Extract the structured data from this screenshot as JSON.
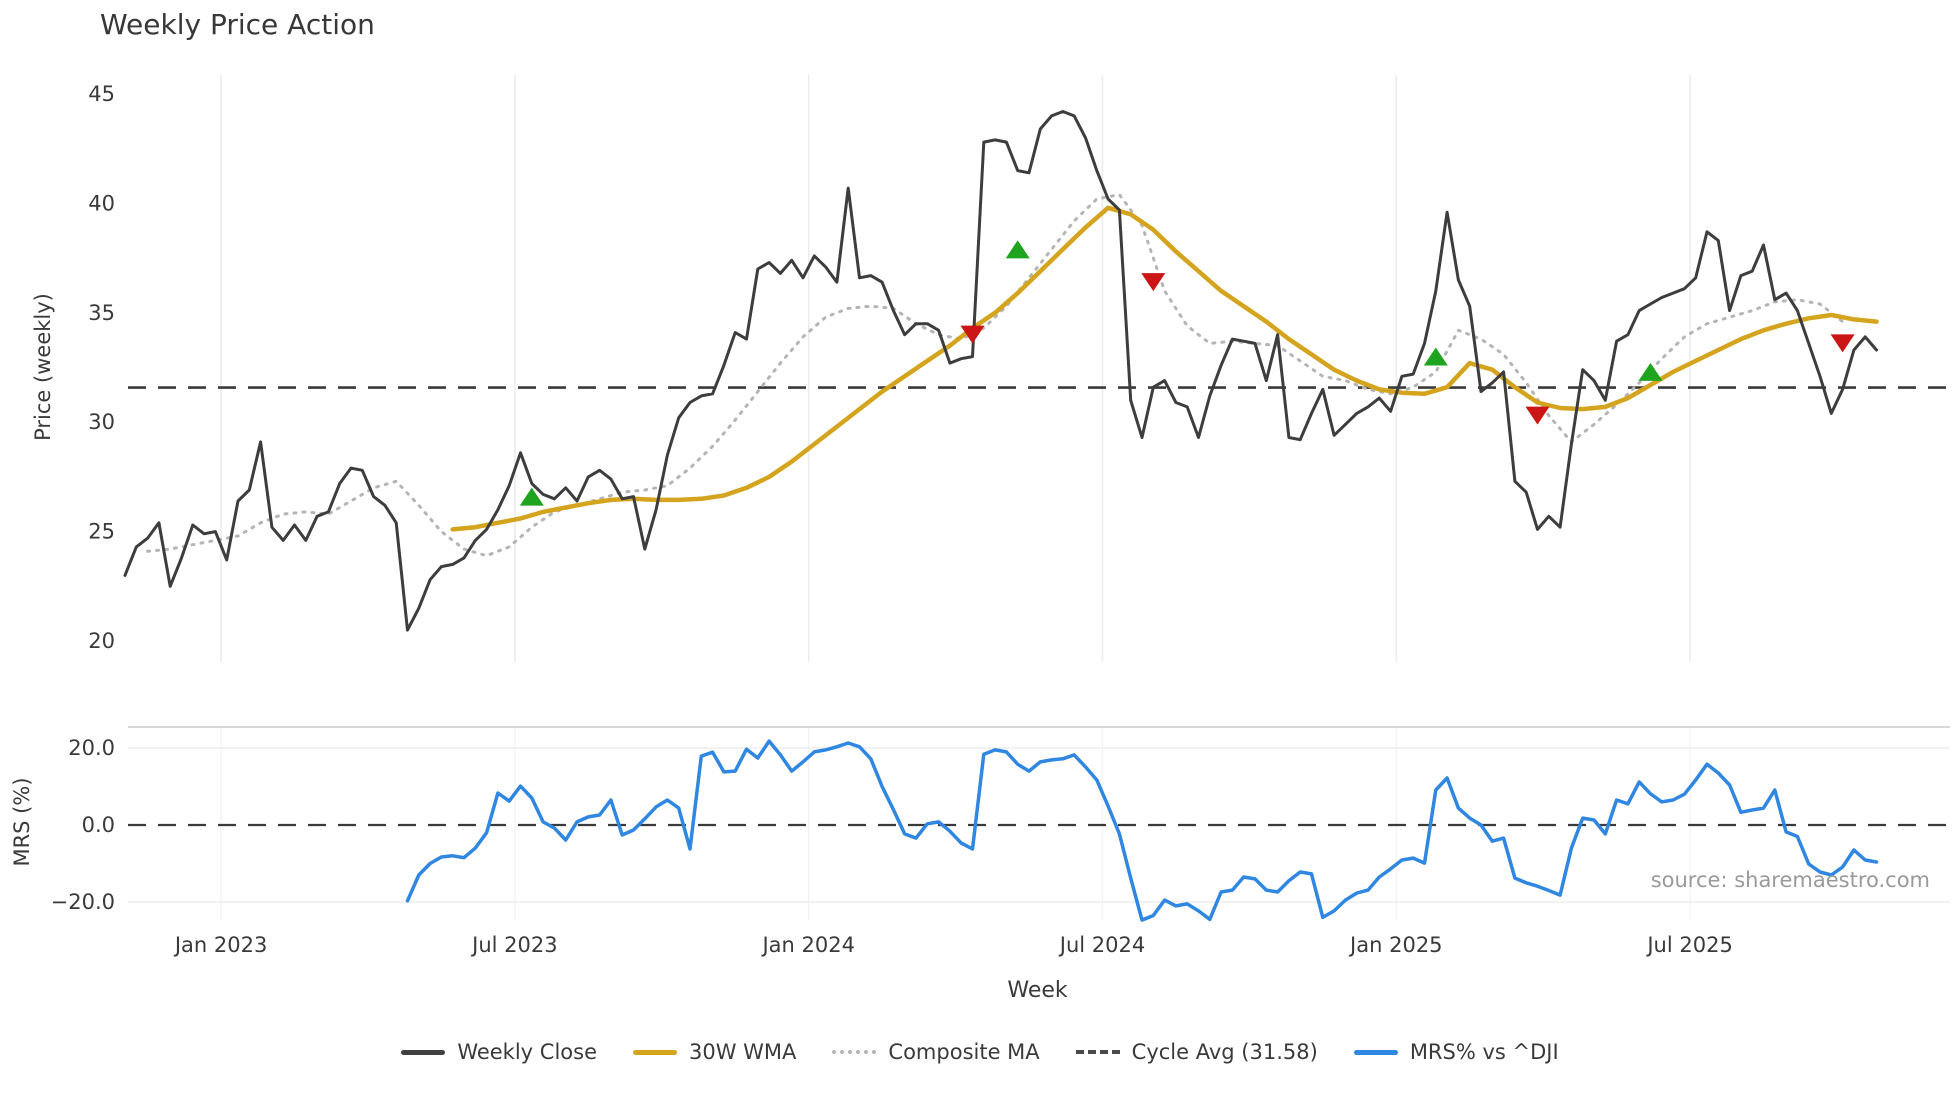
{
  "page": {
    "source_note": "source: sharemaestro.com"
  },
  "chart_data": {
    "type": "line",
    "title": "Weekly Price Action",
    "xlabel": "Week",
    "grid": "light vertical gridlines on price panel; light horizontal gridlines on MRS panel",
    "legend_position": "bottom center",
    "panels": [
      {
        "name": "price",
        "ylabel": "Price (weekly)",
        "yticks": [
          20,
          25,
          30,
          35,
          40,
          45
        ],
        "ylim": [
          19.0,
          45.9
        ]
      },
      {
        "name": "mrs",
        "ylabel": "MRS (%)",
        "yticks": [
          20.0,
          0.0,
          -20.0
        ],
        "ylim": [
          -26,
          26
        ]
      }
    ],
    "price_ticks": [
      {
        "value": 45,
        "label": "45"
      },
      {
        "value": 40,
        "label": "40"
      },
      {
        "value": 35,
        "label": "35"
      },
      {
        "value": 30,
        "label": "30"
      },
      {
        "value": 25,
        "label": "25"
      },
      {
        "value": 20,
        "label": "20"
      }
    ],
    "mrs_ticks": [
      {
        "value": 20,
        "label": "20.0"
      },
      {
        "value": 0,
        "label": "0.0"
      },
      {
        "value": -20,
        "label": "−20.0"
      }
    ],
    "x_ticks": [
      {
        "week": 8.5,
        "label": "Jan 2023"
      },
      {
        "week": 34.5,
        "label": "Jul 2023"
      },
      {
        "week": 60.5,
        "label": "Jan 2024"
      },
      {
        "week": 86.5,
        "label": "Jul 2024"
      },
      {
        "week": 112.5,
        "label": "Jan 2025"
      },
      {
        "week": 138.5,
        "label": "Jul 2025"
      }
    ],
    "cycle_avg": 31.58,
    "series": [
      {
        "name": "Weekly Close",
        "panel": "price",
        "color": "#3d3d3d",
        "style": "solid",
        "width": 3,
        "start_week": 0,
        "step": 1,
        "values": [
          23.0,
          24.3,
          24.7,
          25.4,
          22.5,
          23.8,
          25.3,
          24.9,
          25.0,
          23.7,
          26.4,
          26.9,
          29.1,
          25.2,
          24.6,
          25.3,
          24.6,
          25.7,
          25.9,
          27.2,
          27.9,
          27.8,
          26.6,
          26.2,
          25.4,
          20.5,
          21.5,
          22.8,
          23.4,
          23.5,
          23.8,
          24.6,
          25.1,
          26.0,
          27.1,
          28.6,
          27.2,
          26.7,
          26.5,
          27.0,
          26.4,
          27.5,
          27.8,
          27.4,
          26.5,
          26.6,
          24.2,
          26.0,
          28.5,
          30.2,
          30.9,
          31.2,
          31.3,
          32.6,
          34.1,
          33.8,
          37.0,
          37.3,
          36.8,
          37.4,
          36.6,
          37.6,
          37.1,
          36.4,
          40.7,
          36.6,
          36.7,
          36.4,
          35.1,
          34.0,
          34.5,
          34.5,
          34.2,
          32.7,
          32.9,
          33.0,
          42.8,
          42.9,
          42.8,
          41.5,
          41.4,
          43.4,
          44.0,
          44.2,
          44.0,
          43.0,
          41.5,
          40.2,
          39.7,
          31.0,
          29.3,
          31.6,
          31.9,
          30.9,
          30.7,
          29.3,
          31.2,
          32.6,
          33.8,
          33.7,
          33.6,
          31.9,
          34.0,
          29.3,
          29.2,
          30.4,
          31.5,
          29.4,
          29.9,
          30.4,
          30.7,
          31.1,
          30.5,
          32.1,
          32.2,
          33.6,
          36.0,
          39.6,
          36.5,
          35.3,
          31.4,
          31.8,
          32.3,
          27.3,
          26.8,
          25.1,
          25.7,
          25.2,
          29.0,
          32.4,
          31.9,
          31.0,
          33.7,
          34.0,
          35.1,
          35.4,
          35.7,
          35.9,
          36.1,
          36.6,
          38.7,
          38.3,
          35.1,
          36.7,
          36.9,
          38.1,
          35.6,
          35.9,
          35.1,
          33.6,
          32.1,
          30.4,
          31.5,
          33.3,
          33.9,
          33.3
        ]
      },
      {
        "name": "30W WMA",
        "panel": "price",
        "color": "#d5a41e",
        "style": "solid",
        "width": 4.5,
        "start_week": 29,
        "step": 2,
        "values": [
          25.1,
          25.2,
          25.4,
          25.6,
          25.9,
          26.1,
          26.3,
          26.45,
          26.5,
          26.45,
          26.45,
          26.5,
          26.65,
          27.0,
          27.5,
          28.2,
          29.0,
          29.8,
          30.6,
          31.4,
          32.1,
          32.8,
          33.5,
          34.3,
          35.0,
          35.9,
          36.9,
          37.9,
          38.9,
          39.8,
          39.5,
          38.8,
          37.8,
          36.9,
          36.0,
          35.3,
          34.6,
          33.8,
          33.1,
          32.4,
          31.9,
          31.5,
          31.35,
          31.3,
          31.6,
          32.7,
          32.4,
          31.6,
          30.9,
          30.65,
          30.6,
          30.7,
          31.1,
          31.7,
          32.3,
          32.8,
          33.3,
          33.8,
          34.2,
          34.5,
          34.75,
          34.9,
          34.7,
          34.6
        ]
      },
      {
        "name": "Composite MA",
        "panel": "price",
        "color": "#b5b5b5",
        "style": "dotted",
        "width": 3,
        "start_week": 2,
        "step": 2,
        "values": [
          24.1,
          24.2,
          24.4,
          24.6,
          24.8,
          25.4,
          25.8,
          25.9,
          25.8,
          26.4,
          27.0,
          27.3,
          26.2,
          25.0,
          24.2,
          23.9,
          24.3,
          25.2,
          25.9,
          26.2,
          26.5,
          26.8,
          26.9,
          27.1,
          27.9,
          28.9,
          30.1,
          31.4,
          32.7,
          33.9,
          34.8,
          35.2,
          35.3,
          35.2,
          34.5,
          34.0,
          33.8,
          34.3,
          35.3,
          36.6,
          37.9,
          39.2,
          40.2,
          40.4,
          39.0,
          36.0,
          34.4,
          33.6,
          33.7,
          33.6,
          33.5,
          32.8,
          32.1,
          31.9,
          31.5,
          31.3,
          31.6,
          32.3,
          34.2,
          33.8,
          33.1,
          31.8,
          30.3,
          29.1,
          29.9,
          30.8,
          31.8,
          32.9,
          33.9,
          34.5,
          34.8,
          35.1,
          35.5,
          35.6,
          35.4,
          34.6
        ]
      },
      {
        "name": "Cycle Avg (31.58)",
        "panel": "price",
        "color": "#3a3a3a",
        "style": "dashed",
        "width": 2.5,
        "value": 31.58
      },
      {
        "name": "MRS% vs ^DJI",
        "panel": "mrs",
        "color": "#2f87e1",
        "style": "solid",
        "width": 3.5,
        "start_week": 25,
        "step": 1,
        "values": [
          -19.7,
          -13.0,
          -10.0,
          -8.3,
          -8.0,
          -8.5,
          -6.0,
          -2.0,
          8.3,
          6.2,
          10.1,
          7.0,
          0.8,
          -0.8,
          -3.9,
          0.8,
          2.1,
          2.6,
          6.5,
          -2.6,
          -1.3,
          1.6,
          4.7,
          6.5,
          4.4,
          -6.2,
          17.9,
          18.9,
          13.8,
          14.0,
          19.7,
          17.4,
          21.8,
          18.2,
          14.0,
          16.4,
          19.0,
          19.5,
          20.3,
          21.3,
          20.3,
          17.2,
          10.0,
          4.0,
          -2.3,
          -3.4,
          0.3,
          0.8,
          -1.6,
          -4.7,
          -6.2,
          18.4,
          19.5,
          19.0,
          15.8,
          14.0,
          16.4,
          16.9,
          17.2,
          18.2,
          15.1,
          11.7,
          4.9,
          -2.3,
          -13.8,
          -24.7,
          -23.5,
          -19.5,
          -21.0,
          -20.5,
          -22.3,
          -24.5,
          -17.4,
          -16.9,
          -13.5,
          -14.0,
          -16.9,
          -17.4,
          -14.5,
          -12.2,
          -12.7,
          -24.0,
          -22.3,
          -19.5,
          -17.7,
          -16.9,
          -13.5,
          -11.4,
          -9.1,
          -8.6,
          -9.9,
          9.1,
          12.2,
          4.4,
          1.8,
          0.0,
          -4.2,
          -3.4,
          -13.8,
          -15.0,
          -15.9,
          -17.0,
          -18.2,
          -6.0,
          1.8,
          1.3,
          -2.3,
          6.5,
          5.5,
          11.2,
          8.1,
          6.0,
          6.5,
          8.0,
          11.7,
          15.8,
          13.5,
          10.4,
          3.3,
          3.9,
          4.4,
          9.1,
          -1.8,
          -3.0,
          -10.1,
          -12.2,
          -13.0,
          -10.9,
          -6.5,
          -9.1,
          -9.6
        ]
      }
    ],
    "markers": {
      "buy": {
        "symbol": "triangle-up",
        "color": "#1ea41e",
        "points": [
          {
            "week": 36,
            "price": 26.6
          },
          {
            "week": 79,
            "price": 37.9
          },
          {
            "week": 116,
            "price": 33.0
          },
          {
            "week": 135,
            "price": 32.3
          }
        ]
      },
      "sell": {
        "symbol": "triangle-down",
        "color": "#cc1515",
        "points": [
          {
            "week": 75,
            "price": 34.0
          },
          {
            "week": 91,
            "price": 36.4
          },
          {
            "week": 125,
            "price": 30.3
          },
          {
            "week": 152,
            "price": 33.6
          }
        ]
      }
    },
    "legend": [
      "Weekly Close",
      "30W WMA",
      "Composite MA",
      "Cycle Avg (31.58)",
      "MRS% vs ^DJI"
    ]
  }
}
